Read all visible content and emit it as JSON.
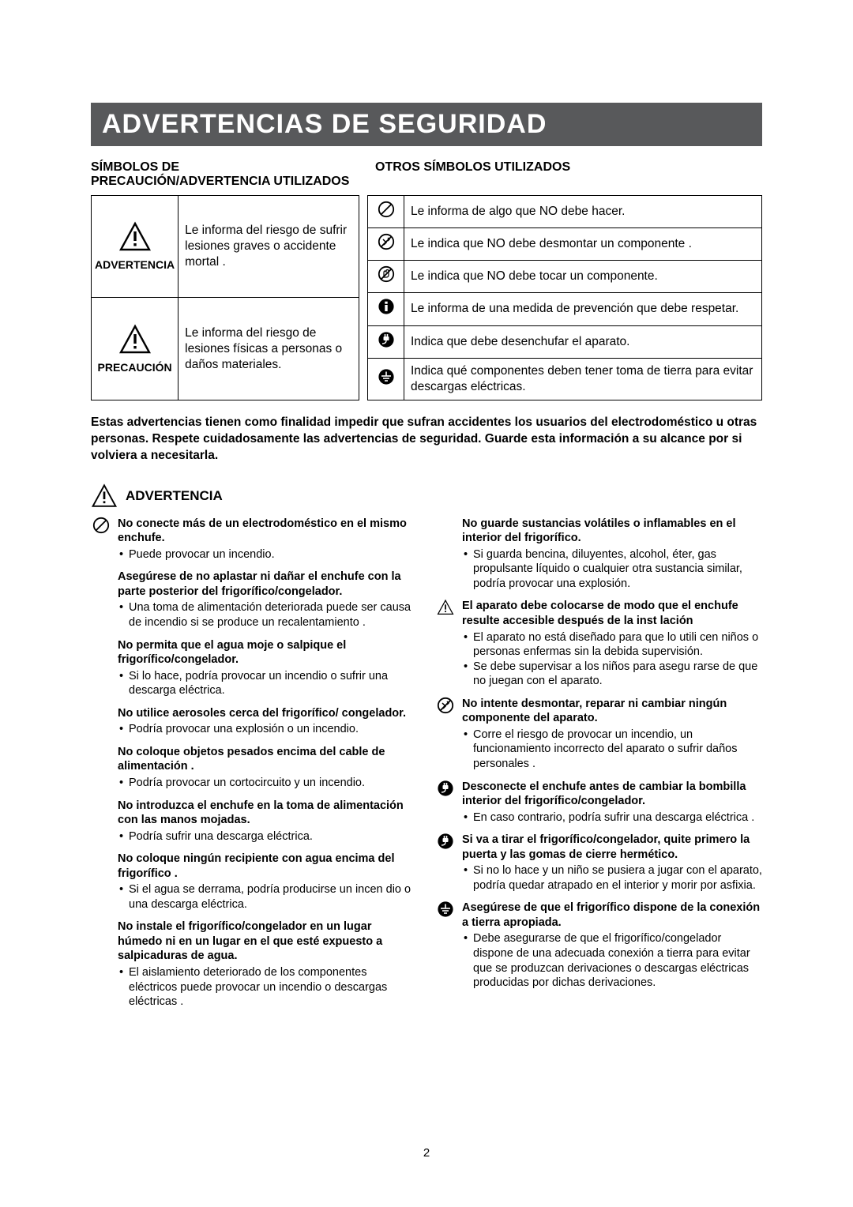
{
  "title": "ADVERTENCIAS DE SEGURIDAD",
  "subhead_left": "SÍMBOLOS DE\nPRECAUCIÓN/ADVERTENCIA UTILIZADOS",
  "subhead_right": "OTROS SÍMBOLOS UTILIZADOS",
  "left_rows": [
    {
      "label": "ADVERTENCIA",
      "text": "Le informa del riesgo de sufrir lesiones graves o accidente mortal ."
    },
    {
      "label": "PRECAUCIÓN",
      "text": "Le informa del riesgo de lesiones físicas a personas o daños materiales."
    }
  ],
  "right_rows": [
    {
      "icon": "prohibit",
      "text": "Le informa de algo que NO debe hacer."
    },
    {
      "icon": "no-disassemble",
      "text": "Le indica que NO debe desmontar un componente ."
    },
    {
      "icon": "no-touch",
      "text": "Le indica que NO debe tocar un componente."
    },
    {
      "icon": "info-strict",
      "text": "Le informa de una medida de prevención que debe respetar."
    },
    {
      "icon": "unplug",
      "text": "Indica que debe desenchufar el aparato."
    },
    {
      "icon": "ground",
      "text": "Indica qué componentes deben tener toma de tierra para evitar descargas eléctricas."
    }
  ],
  "warning_para": "Estas advertencias tienen como finalidad impedir que sufran accidentes los usuarios del electrodoméstico u otras personas. Respete cuidadosamente las advertencias de seguridad. Guarde esta información a su alcance por si volviera a necesitarla.",
  "section_warn_label": "ADVERTENCIA",
  "left_items": [
    {
      "icon": "prohibit",
      "head": "No conecte más de un electrodoméstico en el mismo enchufe.",
      "bullets": [
        "Puede provocar un incendio."
      ]
    },
    {
      "icon": "",
      "head": "Asegúrese de no aplastar ni dañar el enchufe con la parte posterior del frigorífico/congelador.",
      "bullets": [
        "Una toma de alimentación deteriorada puede ser causa de incendio si se produce un recalentamiento ."
      ]
    },
    {
      "icon": "",
      "head": "No permita que el agua moje o salpique el frigorífico/congelador.",
      "bullets": [
        "Si lo hace, podría provocar un incendio o sufrir una descarga eléctrica."
      ]
    },
    {
      "icon": "",
      "head": "No utilice aerosoles cerca del frigorífico/ congelador.",
      "bullets": [
        "Podría provocar una explosión o un incendio."
      ]
    },
    {
      "icon": "",
      "head": "No coloque objetos pesados encima del cable de alimentación .",
      "bullets": [
        "Podría provocar un cortocircuito y un incendio."
      ]
    },
    {
      "icon": "",
      "head": "No introduzca el enchufe en la toma de alimentación con las manos mojadas.",
      "bullets": [
        "Podría sufrir una descarga eléctrica."
      ]
    },
    {
      "icon": "",
      "head": "No coloque ningún recipiente con agua encima del frigorífico .",
      "bullets": [
        "Si el agua se derrama, podría producirse un incen dio o una descarga eléctrica."
      ]
    },
    {
      "icon": "",
      "head": "No instale el frigorífico/congelador en un lugar húmedo ni en un lugar en el que esté expuesto a salpicaduras de agua.",
      "bullets": [
        "El aislamiento deteriorado de los componentes eléctricos puede provocar un incendio o descargas eléctricas ."
      ]
    }
  ],
  "right_items": [
    {
      "icon": "",
      "head": "No guarde sustancias volátiles o inflamables en el interior del frigorífico.",
      "bullets": [
        "Si guarda bencina, diluyentes, alcohol, éter, gas propulsante líquido o cualquier otra sustancia similar, podría provocar una explosión."
      ]
    },
    {
      "icon": "warn-tri",
      "head": "El aparato debe colocarse de modo que el enchufe resulte accesible después de la inst lación",
      "bullets": [
        "El aparato no está diseñado para que lo utili cen niños o personas enfermas sin la debida supervisión.",
        "Se debe supervisar a los niños para asegu rarse de que no juegan con el aparato."
      ]
    },
    {
      "icon": "no-disassemble",
      "head": "No intente desmontar, reparar ni cambiar ningún componente del aparato.",
      "bullets": [
        "Corre el riesgo de provocar un incendio, un funcionamiento incorrecto del aparato o sufrir daños personales ."
      ]
    },
    {
      "icon": "unplug",
      "head": "Desconecte el enchufe antes de cambiar la bombilla interior del frigorífico/congelador.",
      "bullets": [
        "En caso contrario, podría sufrir una descarga eléctrica ."
      ]
    },
    {
      "icon": "unplug",
      "head": "Si va a tirar el frigorífico/congelador, quite primero la puerta y las gomas de cierre hermético.",
      "bullets": [
        "Si no lo hace y un niño se pusiera a jugar con el aparato, podría quedar atrapado en el interior y morir por asfixia."
      ]
    },
    {
      "icon": "ground",
      "head": "Asegúrese de que el frigorífico dispone de la conexión a tierra apropiada.",
      "bullets": [
        "Debe asegurarse de que el frigorífico/congelador dispone de una adecuada conexión a tierra para evitar que se produzcan derivaciones o descargas eléctricas producidas por dichas derivaciones."
      ]
    }
  ],
  "page_num": "2",
  "colors": {
    "titlebar_bg": "#58595b",
    "titlebar_fg": "#ffffff",
    "border": "#000000",
    "text": "#000000",
    "page_bg": "#ffffff"
  }
}
